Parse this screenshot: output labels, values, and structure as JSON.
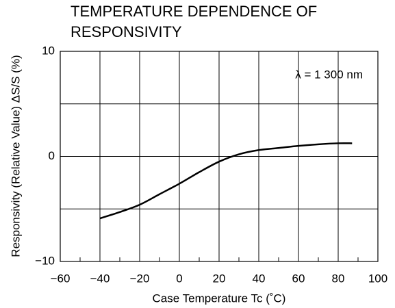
{
  "chart_data": {
    "type": "line",
    "title": [
      "TEMPERATURE DEPENDENCE OF",
      "RESPONSIVITY"
    ],
    "x_label": "Case Temperature  Tc (˚C)",
    "y_label": "Responsivity (Relative Value)  ΔS/S (%)",
    "annotation": "λ = 1 300 nm",
    "xlim": [
      -60,
      100
    ],
    "xticks": [
      {
        "value": -60,
        "label": "−60"
      },
      {
        "value": -40,
        "label": "−40"
      },
      {
        "value": -20,
        "label": "−20"
      },
      0,
      20,
      40,
      60,
      80,
      100
    ],
    "xminor": [
      -50,
      -30,
      -10,
      10,
      30,
      50,
      70,
      90
    ],
    "ylim": [
      -10,
      10
    ],
    "yticks": [
      {
        "value": -10,
        "label": "−10"
      },
      0,
      10
    ],
    "ygrid": [
      -5,
      0,
      5
    ],
    "grid": true,
    "series": [
      {
        "color": "#000000",
        "x": [
          -40,
          -30,
          -20,
          -10,
          0,
          10,
          20,
          30,
          40,
          50,
          60,
          70,
          80,
          87
        ],
        "values": [
          -5.9,
          -5.3,
          -4.6,
          -3.6,
          -2.6,
          -1.5,
          -0.5,
          0.2,
          0.6,
          0.8,
          1.0,
          1.15,
          1.25,
          1.25
        ]
      }
    ]
  }
}
